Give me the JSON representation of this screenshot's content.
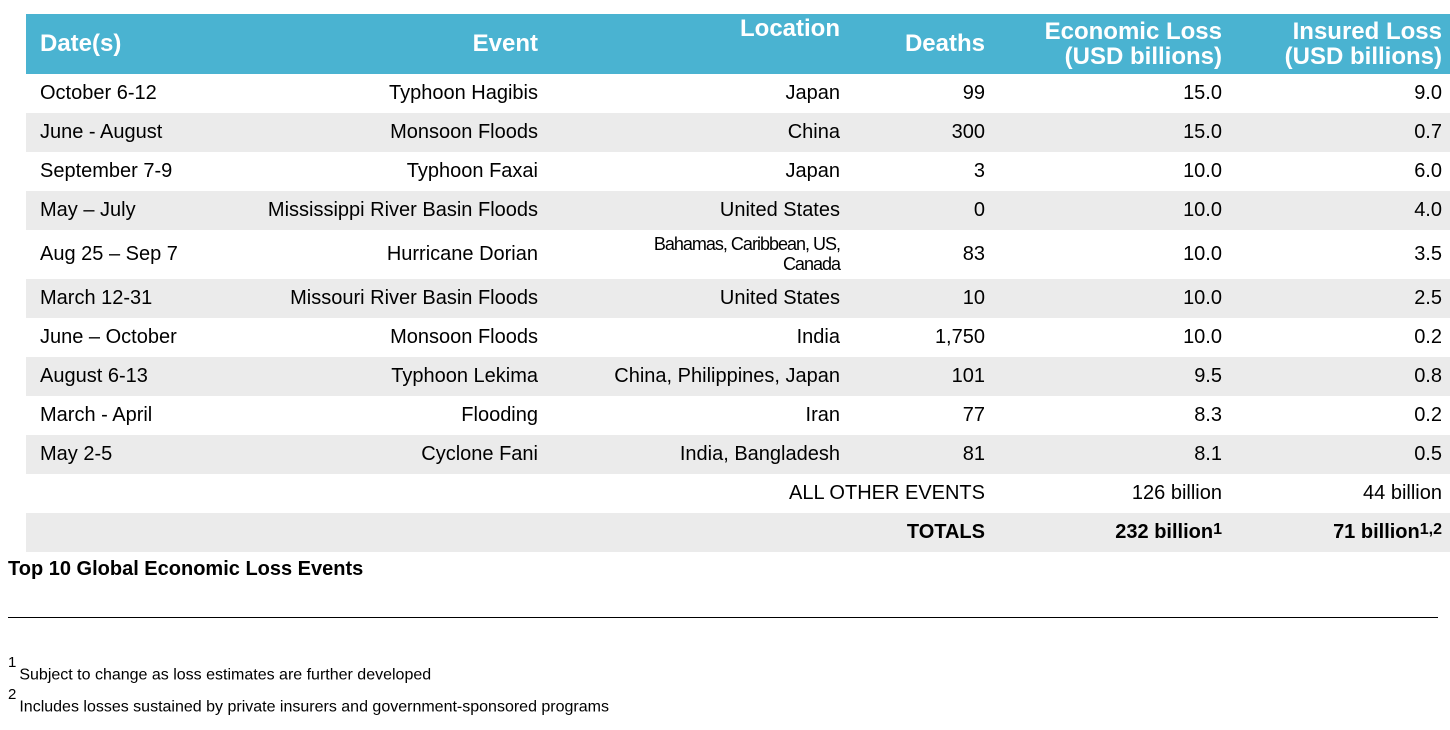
{
  "table": {
    "header": [
      [
        "Date(s)"
      ],
      [
        "Event"
      ],
      [
        "Location"
      ],
      [
        "Deaths"
      ],
      [
        "Economic Loss",
        "(USD billions)"
      ],
      [
        "Insured Loss",
        "(USD billions)"
      ]
    ],
    "rows": [
      [
        "October 6-12",
        "Typhoon Hagibis",
        "Japan",
        "99",
        "15.0",
        "9.0"
      ],
      [
        "June - August",
        "Monsoon Floods",
        "China",
        "300",
        "15.0",
        "0.7"
      ],
      [
        "September 7-9",
        "Typhoon Faxai",
        "Japan",
        "3",
        "10.0",
        "6.0"
      ],
      [
        "May – July",
        "Mississippi River Basin Floods",
        "United States",
        "0",
        "10.0",
        "4.0"
      ],
      [
        "Aug 25 – Sep 7",
        "Hurricane Dorian",
        "Bahamas, Caribbean, US, Canada",
        "83",
        "10.0",
        "3.5"
      ],
      [
        "March 12-31",
        "Missouri River Basin Floods",
        "United States",
        "10",
        "10.0",
        "2.5"
      ],
      [
        "June – October",
        "Monsoon Floods",
        "India",
        "1,750",
        "10.0",
        "0.2"
      ],
      [
        "August 6-13",
        "Typhoon Lekima",
        "China, Philippines, Japan",
        "101",
        "9.5",
        "0.8"
      ],
      [
        "March - April",
        "Flooding",
        "Iran",
        "77",
        "8.3",
        "0.2"
      ],
      [
        "May 2-5",
        "Cyclone Fani",
        "India, Bangladesh",
        "81",
        "8.1",
        "0.5"
      ]
    ],
    "other": {
      "label": "ALL OTHER EVENTS",
      "economic": "126 billion",
      "insured": "44 billion"
    },
    "totals": {
      "label": "TOTALS",
      "economic": {
        "text": "232 billion",
        "sup": "1"
      },
      "insured": {
        "text": "71 billion",
        "sup": "1,2"
      }
    }
  },
  "caption": "Top 10 Global Economic Loss Events",
  "footnotes": [
    {
      "marker": "1",
      "text": "Subject to change as loss estimates are further developed"
    },
    {
      "marker": "2",
      "text": "Includes losses sustained by private insurers and government-sponsored programs"
    }
  ]
}
